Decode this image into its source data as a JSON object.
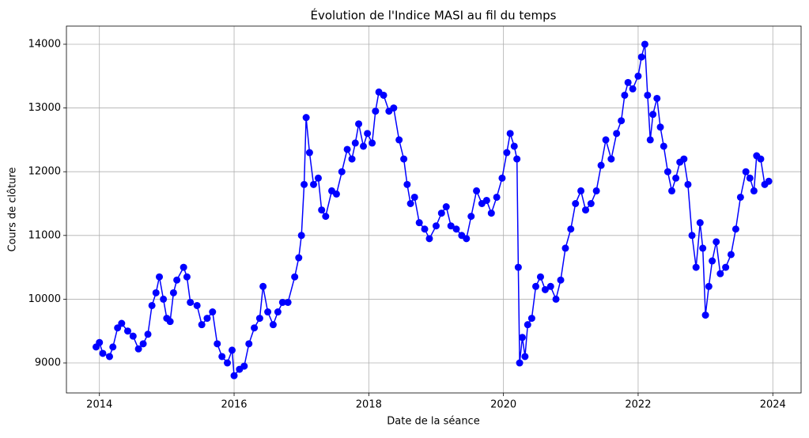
{
  "chart_data": {
    "type": "line",
    "title": "Évolution de l'Indice MASI au fil du temps",
    "x_label": "Date de la séance",
    "y_label": "Cours de clôture",
    "color": "#0000ff",
    "grid": true,
    "xlim": [
      2013.51,
      2024.42
    ],
    "xticks": [
      2014,
      2016,
      2018,
      2020,
      2022,
      2024
    ],
    "ylim": [
      8529,
      14285
    ],
    "yticks": [
      9000,
      10000,
      11000,
      12000,
      13000,
      14000
    ],
    "x": [
      2013.95,
      2014.0,
      2014.05,
      2014.15,
      2014.2,
      2014.27,
      2014.33,
      2014.42,
      2014.5,
      2014.58,
      2014.65,
      2014.72,
      2014.78,
      2014.84,
      2014.89,
      2014.95,
      2015.0,
      2015.05,
      2015.1,
      2015.15,
      2015.25,
      2015.3,
      2015.35,
      2015.45,
      2015.52,
      2015.6,
      2015.68,
      2015.75,
      2015.82,
      2015.9,
      2015.97,
      2016.0,
      2016.08,
      2016.15,
      2016.22,
      2016.3,
      2016.38,
      2016.43,
      2016.5,
      2016.58,
      2016.65,
      2016.72,
      2016.8,
      2016.9,
      2016.96,
      2017.0,
      2017.04,
      2017.07,
      2017.12,
      2017.18,
      2017.25,
      2017.3,
      2017.36,
      2017.45,
      2017.52,
      2017.6,
      2017.68,
      2017.75,
      2017.8,
      2017.85,
      2017.92,
      2017.98,
      2018.05,
      2018.1,
      2018.15,
      2018.22,
      2018.3,
      2018.37,
      2018.45,
      2018.52,
      2018.57,
      2018.62,
      2018.68,
      2018.75,
      2018.83,
      2018.9,
      2019.0,
      2019.08,
      2019.15,
      2019.22,
      2019.3,
      2019.38,
      2019.45,
      2019.52,
      2019.6,
      2019.68,
      2019.75,
      2019.82,
      2019.9,
      2019.98,
      2020.05,
      2020.1,
      2020.16,
      2020.2,
      2020.22,
      2020.24,
      2020.28,
      2020.32,
      2020.36,
      2020.42,
      2020.48,
      2020.55,
      2020.62,
      2020.7,
      2020.78,
      2020.85,
      2020.92,
      2021.0,
      2021.07,
      2021.15,
      2021.22,
      2021.3,
      2021.38,
      2021.45,
      2021.52,
      2021.6,
      2021.68,
      2021.75,
      2021.8,
      2021.85,
      2021.92,
      2022.0,
      2022.05,
      2022.1,
      2022.14,
      2022.18,
      2022.22,
      2022.28,
      2022.33,
      2022.38,
      2022.44,
      2022.5,
      2022.56,
      2022.62,
      2022.68,
      2022.74,
      2022.8,
      2022.86,
      2022.92,
      2022.96,
      2023.0,
      2023.05,
      2023.1,
      2023.16,
      2023.22,
      2023.3,
      2023.38,
      2023.45,
      2023.52,
      2023.6,
      2023.66,
      2023.72,
      2023.76,
      2023.82,
      2023.88,
      2023.94
    ],
    "values": [
      9250,
      9320,
      9150,
      9100,
      9250,
      9550,
      9620,
      9500,
      9420,
      9220,
      9300,
      9450,
      9900,
      10100,
      10350,
      10000,
      9700,
      9650,
      10100,
      10300,
      10500,
      10350,
      9950,
      9900,
      9600,
      9700,
      9800,
      9300,
      9100,
      9000,
      9200,
      8800,
      8900,
      8950,
      9300,
      9550,
      9700,
      10200,
      9800,
      9600,
      9800,
      9950,
      9950,
      10350,
      10650,
      11000,
      11800,
      12850,
      12300,
      11800,
      11900,
      11400,
      11300,
      11700,
      11650,
      12000,
      12350,
      12200,
      12450,
      12750,
      12400,
      12600,
      12450,
      12950,
      13250,
      13200,
      12950,
      13000,
      12500,
      12200,
      11800,
      11500,
      11600,
      11200,
      11100,
      10950,
      11150,
      11350,
      11450,
      11150,
      11100,
      11000,
      10950,
      11300,
      11700,
      11500,
      11550,
      11350,
      11600,
      11900,
      12300,
      12600,
      12400,
      12200,
      10500,
      9000,
      9400,
      9100,
      9600,
      9700,
      10200,
      10350,
      10150,
      10200,
      10000,
      10300,
      10800,
      11100,
      11500,
      11700,
      11400,
      11500,
      11700,
      12100,
      12500,
      12200,
      12600,
      12800,
      13200,
      13400,
      13300,
      13500,
      13800,
      14000,
      13200,
      12500,
      12900,
      13150,
      12700,
      12400,
      12000,
      11700,
      11900,
      12150,
      12200,
      11800,
      11000,
      10500,
      11200,
      10800,
      9750,
      10200,
      10600,
      10900,
      10400,
      10500,
      10700,
      11100,
      11600,
      12000,
      11900,
      11700,
      12250,
      12200,
      11800,
      11850
    ]
  }
}
